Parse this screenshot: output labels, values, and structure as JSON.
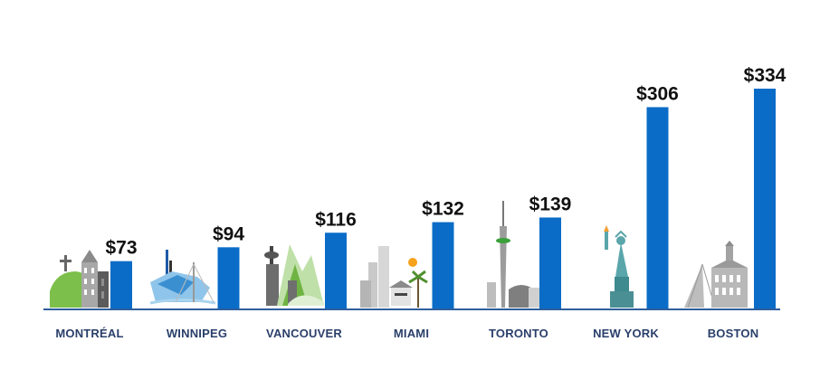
{
  "chart_data": {
    "type": "bar",
    "categories": [
      "MONTRÉAL",
      "WINNIPEG",
      "VANCOUVER",
      "MIAMI",
      "TORONTO",
      "NEW YORK",
      "BOSTON"
    ],
    "values": [
      73,
      94,
      116,
      132,
      139,
      306,
      334
    ],
    "value_labels": [
      "$73",
      "$94",
      "$116",
      "$132",
      "$139",
      "$306",
      "$334"
    ],
    "title": "",
    "xlabel": "",
    "ylabel": "",
    "ylim": [
      0,
      334
    ],
    "grid": false,
    "legend": "none"
  },
  "colors": {
    "bar": "#0a6cc7",
    "baseline": "#2f5f9c",
    "value_text": "#111111",
    "category_text": "#2a3f6a"
  },
  "icons": [
    "montreal-skyline-icon",
    "winnipeg-skyline-icon",
    "vancouver-skyline-icon",
    "miami-skyline-icon",
    "toronto-skyline-icon",
    "new-york-skyline-icon",
    "boston-skyline-icon"
  ]
}
